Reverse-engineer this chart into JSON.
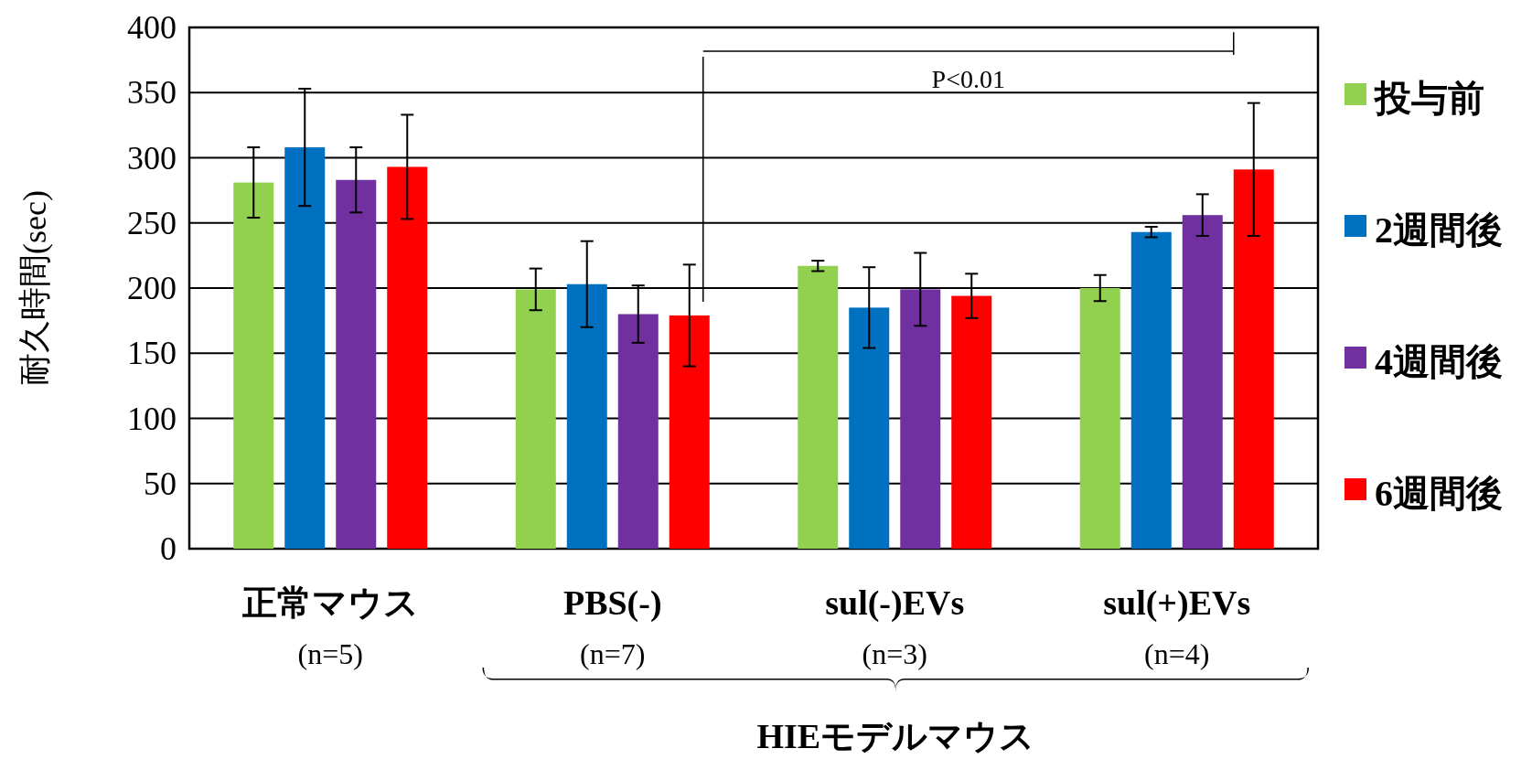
{
  "chart_data": {
    "type": "bar",
    "ylabel": "耐久時間(sec)",
    "categories": [
      "正常マウス",
      "PBS(-)",
      "sul(-)EVs",
      "sul(+)EVs"
    ],
    "series": [
      {
        "name": "投与前",
        "color": "#92d050",
        "values": [
          281,
          199,
          217,
          200
        ],
        "errors": [
          27,
          16,
          4,
          10
        ]
      },
      {
        "name": "2週間後",
        "color": "#0070c0",
        "values": [
          308,
          203,
          185,
          243
        ],
        "errors": [
          45,
          33,
          31,
          4
        ]
      },
      {
        "name": "4週間後",
        "color": "#7030a0",
        "values": [
          283,
          180,
          199,
          256
        ],
        "errors": [
          25,
          22,
          28,
          16
        ]
      },
      {
        "name": "6週間後",
        "color": "#ff0000",
        "values": [
          293,
          179,
          194,
          291
        ],
        "errors": [
          40,
          39,
          17,
          51
        ]
      }
    ],
    "ylim": [
      0,
      400
    ],
    "yticks": [
      0,
      50,
      100,
      150,
      200,
      250,
      300,
      350,
      400
    ],
    "grid": "y",
    "legend": "right",
    "annotations": [
      "(n=5)",
      "(n=7)",
      "(n=3)",
      "(n=4)",
      "HIEモデルマウス",
      "P<0.01"
    ]
  }
}
